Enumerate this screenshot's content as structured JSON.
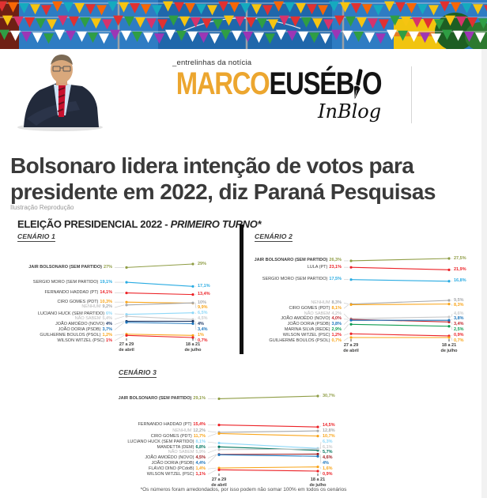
{
  "header": {
    "tagline": "_entrelinhas da notícia",
    "brand_marco": "MARCO",
    "brand_euseb": "EUSÉB",
    "brand_o": "O",
    "inblog": "InBlog",
    "brand_color": "#eca62f"
  },
  "article": {
    "headline": "Bolsonaro lidera intenção de votos para presidente em 2022, diz Paraná Pesquisas",
    "caption": "Ilustração Reprodução"
  },
  "chart_data": {
    "type": "line",
    "subtype": "slopegraph",
    "title": "ELEIÇÃO PRESIDENCIAL 2022 - PRIMEIRO TURNO*",
    "title_regular": "ELEIÇÃO PRESIDENCIAL 2022 - ",
    "title_italic": "PRIMEIRO TURNO*",
    "x": [
      "27 a 29 de abril",
      "18 a 21 de julho"
    ],
    "x_short": [
      [
        "27 a 29",
        "de abril"
      ],
      [
        "18 a 21",
        "de julho"
      ]
    ],
    "footnote": "*Os números foram arredondados, por isso podem não somar 100% em todos os cenários",
    "scenarios": [
      {
        "label": "CENÁRIO 1",
        "candidates": [
          {
            "name": "JAIR BOLSONARO (SEM PARTIDO)",
            "april": 27.0,
            "july": 29.0,
            "april_label": "27%",
            "july_label": "29%",
            "color": "#8f9d45",
            "bold": true
          },
          {
            "name": "SERGIO MORO (SEM PARTIDO)",
            "april": 19.1,
            "july": 17.1,
            "april_label": "19,1%",
            "july_label": "17,1%",
            "color": "#29abe2"
          },
          {
            "name": "FERNANDO HADDAD (PT)",
            "april": 14.1,
            "july": 13.4,
            "april_label": "14,1%",
            "july_label": "13,4%",
            "color": "#ec2227"
          },
          {
            "name": "CIRO GOMES (PDT)",
            "april": 10.3,
            "july": 9.9,
            "april_label": "10,3%",
            "july_label": "9,9%",
            "color": "#f9a51a"
          },
          {
            "name": "NENHUM",
            "april": 9.2,
            "july": 10.0,
            "april_label": "9,2%",
            "july_label": "10%",
            "color": "#a6a8ab",
            "muted": true
          },
          {
            "name": "LUCIANO HUCK (SEM PARTIDO)",
            "april": 6.0,
            "july": 6.5,
            "april_label": "6%",
            "july_label": "6,5%",
            "color": "#8ed8f8"
          },
          {
            "name": "NÃO SABEM",
            "april": 5.4,
            "july": 4.5,
            "april_label": "5,4%",
            "july_label": "4,5%",
            "color": "#c9cacb",
            "muted": true
          },
          {
            "name": "JOÃO AMOÊDO (NOVO)",
            "april": 4.0,
            "july": 4.0,
            "april_label": "4%",
            "july_label": "4%",
            "color": "#1b3664"
          },
          {
            "name": "JOÃO DORIA (PSDB)",
            "april": 3.7,
            "july": 3.4,
            "april_label": "3,7%",
            "july_label": "3,4%",
            "color": "#1c75bc"
          },
          {
            "name": "GUILHERME BOULOS (PSOL)",
            "april": 1.2,
            "july": 1.0,
            "april_label": "1,2%",
            "july_label": "1%",
            "color": "#f9a51a"
          },
          {
            "name": "WILSON WITZEL (PSC)",
            "april": 1.0,
            "july": 0.7,
            "april_label": "1%",
            "july_label": "0,7%",
            "color": "#ec2227"
          }
        ]
      },
      {
        "label": "CENÁRIO 2",
        "candidates": [
          {
            "name": "JAIR BOLSONARO (SEM PARTIDO)",
            "april": 26.3,
            "july": 27.5,
            "april_label": "26,3%",
            "july_label": "27,5%",
            "color": "#8f9d45",
            "bold": true
          },
          {
            "name": "LULA (PT)",
            "april": 23.1,
            "july": 21.9,
            "april_label": "23,1%",
            "july_label": "21,9%",
            "color": "#ec2227"
          },
          {
            "name": "SERGIO MORO (SEM PARTIDO)",
            "april": 17.5,
            "july": 16.8,
            "april_label": "17,5%",
            "july_label": "16,8%",
            "color": "#29abe2"
          },
          {
            "name": "NENHUM",
            "april": 8.3,
            "july": 9.5,
            "april_label": "8,3%",
            "july_label": "9,5%",
            "color": "#a6a8ab",
            "muted": true
          },
          {
            "name": "CIRO GOMES (PDT)",
            "april": 8.1,
            "july": 8.3,
            "april_label": "8,1%",
            "july_label": "8,3%",
            "color": "#f9a51a"
          },
          {
            "name": "NÃO SABEM",
            "april": 4.2,
            "july": 4.6,
            "april_label": "4,2%",
            "july_label": "4,6%",
            "color": "#c9cacb",
            "muted": true
          },
          {
            "name": "JOÃO AMOÊDO (NOVO)",
            "april": 4.0,
            "july": 3.4,
            "april_label": "4,0%",
            "july_label": "3,4%",
            "color": "#c1272d"
          },
          {
            "name": "JOÃO DORIA (PSDB)",
            "april": 3.8,
            "july": 3.8,
            "april_label": "3,8%",
            "july_label": "3,8%",
            "color": "#1c75bc"
          },
          {
            "name": "MARINA SILVA (REDE)",
            "april": 2.9,
            "july": 2.5,
            "april_label": "2,9%",
            "july_label": "2,5%",
            "color": "#0e9c51"
          },
          {
            "name": "WILSON WITZEL (PSC)",
            "april": 1.2,
            "july": 0.9,
            "april_label": "1,2%",
            "july_label": "0,9%",
            "color": "#ec2227"
          },
          {
            "name": "GUILHERME BOULOS (PSOL)",
            "april": 0.7,
            "july": 0.7,
            "april_label": "0,7%",
            "july_label": "0,7%",
            "color": "#f9a51a"
          }
        ]
      },
      {
        "label": "CENÁRIO 3",
        "candidates": [
          {
            "name": "JAIR BOLSONARO (SEM PARTIDO)",
            "april": 29.1,
            "july": 30.7,
            "april_label": "29,1%",
            "july_label": "30,7%",
            "color": "#8f9d45",
            "bold": true
          },
          {
            "name": "FERNANDO HADDAD (PT)",
            "april": 15.4,
            "july": 14.5,
            "april_label": "15,4%",
            "july_label": "14,5%",
            "color": "#ec2227"
          },
          {
            "name": "NENHUM",
            "april": 12.2,
            "july": 12.8,
            "april_label": "12,2%",
            "july_label": "12,8%",
            "color": "#a6a8ab",
            "muted": true
          },
          {
            "name": "CIRO GOMES (PDT)",
            "april": 11.7,
            "july": 10.7,
            "april_label": "11,7%",
            "july_label": "10,7%",
            "color": "#f9a51a"
          },
          {
            "name": "LUCIANO HUCK (SEM PARTIDO)",
            "april": 8.1,
            "july": 6.3,
            "april_label": "8,1%",
            "july_label": "6,3%",
            "color": "#8ed8f8"
          },
          {
            "name": "MANDETTA (DEM)",
            "april": 6.8,
            "july": 5.7,
            "april_label": "6,8%",
            "july_label": "5,7%",
            "color": "#00755e"
          },
          {
            "name": "NÃO SABEM",
            "april": 5.9,
            "july": 6.1,
            "april_label": "5,9%",
            "july_label": "6,1%",
            "color": "#c9cacb",
            "muted": true
          },
          {
            "name": "JOÃO AMOÊDO (NOVO)",
            "april": 4.5,
            "july": 4.6,
            "april_label": "4,5%",
            "july_label": "4,6%",
            "color": "#9e1c20"
          },
          {
            "name": "JOÃO DORIA (PSDB)",
            "april": 4.4,
            "july": 4.0,
            "april_label": "4,4%",
            "july_label": "4%",
            "color": "#1c75bc"
          },
          {
            "name": "FLÁVIO DINO (PCdoB)",
            "april": 1.4,
            "july": 1.6,
            "april_label": "1,4%",
            "july_label": "1,6%",
            "color": "#f9a51a"
          },
          {
            "name": "WILSON WITZEL (PSC)",
            "april": 1.1,
            "july": 0.9,
            "april_label": "1,1%",
            "july_label": "0,9%",
            "color": "#ec2227"
          }
        ]
      }
    ]
  }
}
